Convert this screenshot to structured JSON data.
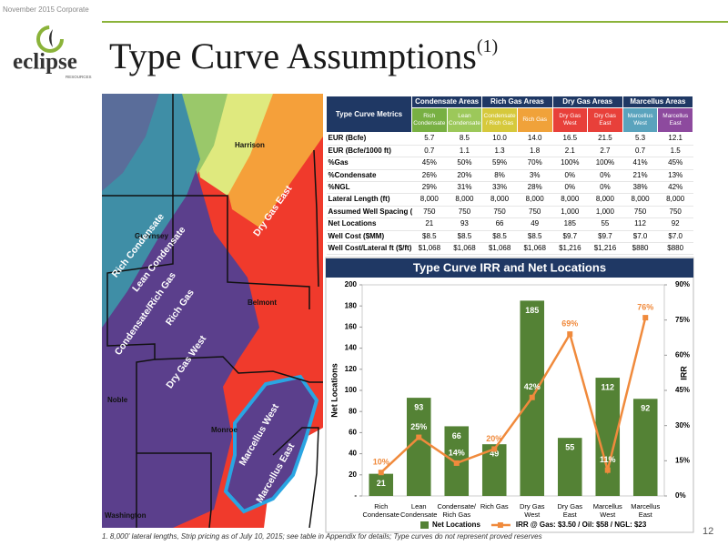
{
  "header": {
    "tag": "November 2015 Corporate",
    "logo": "eclipse",
    "logo_sub": "RESOURCES",
    "title": "Type Curve Assumptions",
    "title_note": "(1)"
  },
  "table": {
    "corner": "Type Curve Metrics",
    "groups": [
      "Condensate Areas",
      "Rich Gas Areas",
      "Dry Gas Areas",
      "Marcellus Areas"
    ],
    "subheaders": [
      {
        "label": "Rich Condensate",
        "color": "#78b043"
      },
      {
        "label": "Lean Condensate",
        "color": "#9cc85a"
      },
      {
        "label": "Condensate / Rich Gas",
        "color": "#d6c93c"
      },
      {
        "label": "Rich Gas",
        "color": "#f0a23a"
      },
      {
        "label": "Dry Gas West",
        "color": "#e8403a"
      },
      {
        "label": "Dry Gas East",
        "color": "#e8403a"
      },
      {
        "label": "Marcellus West",
        "color": "#5aa3bd"
      },
      {
        "label": "Marcellus East",
        "color": "#8d4a9e"
      }
    ],
    "rows": [
      {
        "label": "EUR (Bcfe)",
        "cells": [
          "5.7",
          "8.5",
          "10.0",
          "14.0",
          "16.5",
          "21.5",
          "5.3",
          "12.1"
        ]
      },
      {
        "label": "EUR (Bcfe/1000 ft)",
        "cells": [
          "0.7",
          "1.1",
          "1.3",
          "1.8",
          "2.1",
          "2.7",
          "0.7",
          "1.5"
        ]
      },
      {
        "label": "%Gas",
        "cells": [
          "45%",
          "50%",
          "59%",
          "70%",
          "100%",
          "100%",
          "41%",
          "45%"
        ]
      },
      {
        "label": "%Condensate",
        "cells": [
          "26%",
          "20%",
          "8%",
          "3%",
          "0%",
          "0%",
          "21%",
          "13%"
        ]
      },
      {
        "label": "%NGL",
        "cells": [
          "29%",
          "31%",
          "33%",
          "28%",
          "0%",
          "0%",
          "38%",
          "42%"
        ]
      },
      {
        "label": "Lateral Length (ft)",
        "cells": [
          "8,000",
          "8,000",
          "8,000",
          "8,000",
          "8,000",
          "8,000",
          "8,000",
          "8,000"
        ]
      },
      {
        "label": "Assumed Well Spacing (ft)",
        "cells": [
          "750",
          "750",
          "750",
          "750",
          "1,000",
          "1,000",
          "750",
          "750"
        ]
      },
      {
        "label": "Net Locations",
        "cells": [
          "21",
          "93",
          "66",
          "49",
          "185",
          "55",
          "112",
          "92"
        ]
      },
      {
        "label": "Well Cost ($MM)",
        "cells": [
          "$8.5",
          "$8.5",
          "$8.5",
          "$8.5",
          "$9.7",
          "$9.7",
          "$7.0",
          "$7.0"
        ]
      },
      {
        "label": "Well Cost/Lateral ft ($/ft)",
        "cells": [
          "$1,068",
          "$1,068",
          "$1,068",
          "$1,068",
          "$1,216",
          "$1,216",
          "$880",
          "$880"
        ]
      }
    ]
  },
  "chart_data": {
    "type": "bar",
    "title": "Type Curve IRR and Net Locations",
    "categories": [
      "Rich Condensate",
      "Lean Condensate",
      "Condensate/ Rich Gas",
      "Rich Gas",
      "Dry Gas West",
      "Dry Gas East",
      "Marcellus West",
      "Marcellus East"
    ],
    "series": [
      {
        "name": "Net Locations",
        "type": "bar",
        "color": "#548235",
        "values": [
          21,
          93,
          66,
          49,
          185,
          55,
          112,
          92
        ]
      },
      {
        "name": "IRR @ Gas: $3.50 / Oil: $58 / NGL: $23",
        "type": "line",
        "axis": "y2",
        "color": "#f08a3c",
        "values": [
          10,
          25,
          14,
          20,
          42,
          69,
          11,
          76
        ],
        "value_labels": [
          "10%",
          "25%",
          "14%",
          "20%",
          "42%",
          "69%",
          "11%",
          "76%"
        ]
      }
    ],
    "ylabel": "Net Locations",
    "y2label": "IRR",
    "ylim": [
      0,
      200
    ],
    "yticks": [
      {
        "value": 0,
        "label": "-"
      },
      20,
      40,
      60,
      80,
      100,
      120,
      140,
      160,
      180,
      200
    ],
    "y2lim": [
      0,
      90
    ],
    "y2ticks": [
      {
        "value": 0,
        "label": "0%"
      },
      {
        "value": 15,
        "label": "15%"
      },
      {
        "value": 30,
        "label": "30%"
      },
      {
        "value": 45,
        "label": "45%"
      },
      {
        "value": 60,
        "label": "60%"
      },
      {
        "value": 75,
        "label": "75%"
      },
      {
        "value": 90,
        "label": "90%"
      }
    ],
    "legend": "bottom"
  },
  "map": {
    "counties": [
      "Harrison",
      "Guernsey",
      "Belmont",
      "Noble",
      "Monroe",
      "Washington"
    ],
    "regions": [
      "Rich Condensate",
      "Lean Condensate",
      "Condensate/Rich Gas",
      "Rich Gas",
      "Dry Gas West",
      "Dry Gas East",
      "Marcellus West",
      "Marcellus East"
    ]
  },
  "footnote": "1.  8,000' lateral lengths, Strip pricing as of July 10, 2015;  see table in Appendix for details; Type curves do not represent proved reserves",
  "page": "12"
}
